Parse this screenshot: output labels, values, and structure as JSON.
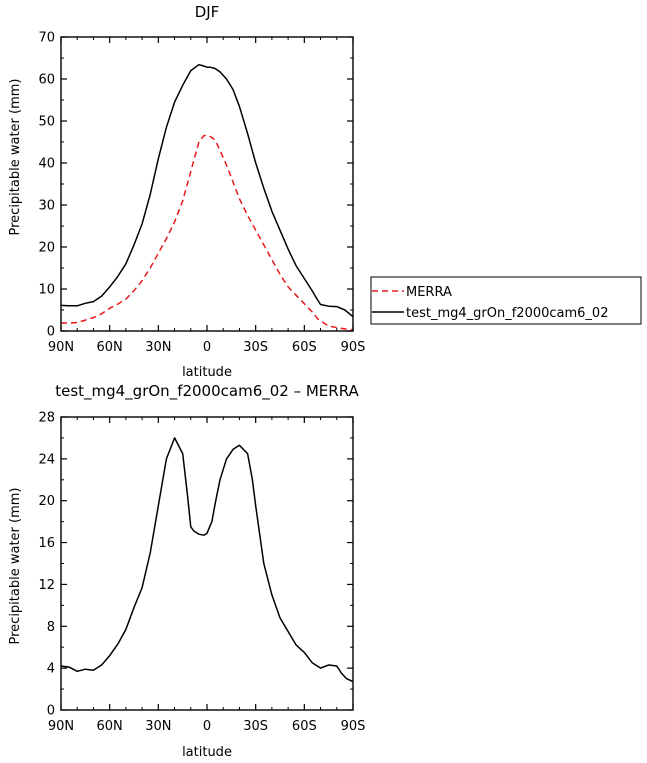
{
  "chart_data": [
    {
      "type": "line",
      "title": "DJF",
      "xlabel": "latitude",
      "ylabel": "Precipitable water (mm)",
      "xlim": [
        90,
        -90
      ],
      "ylim": [
        0,
        70
      ],
      "x_ticks": [
        90,
        60,
        30,
        0,
        -30,
        -60,
        -90
      ],
      "x_tick_labels": [
        "90N",
        "60N",
        "30N",
        "0",
        "30S",
        "60S",
        "90S"
      ],
      "y_ticks": [
        0,
        10,
        20,
        30,
        40,
        50,
        60,
        70
      ],
      "y_tick_labels": [
        "0",
        "10",
        "20",
        "30",
        "40",
        "50",
        "60",
        "70"
      ],
      "legend_position": "right",
      "series": [
        {
          "name": "MERRA",
          "color": "#e8191c",
          "dash": "dashed",
          "x": [
            90,
            85,
            80,
            75,
            70,
            65,
            60,
            55,
            50,
            45,
            40,
            35,
            30,
            25,
            20,
            15,
            10,
            5,
            2,
            0,
            -2,
            -5,
            -8,
            -12,
            -16,
            -20,
            -25,
            -30,
            -35,
            -40,
            -45,
            -50,
            -55,
            -60,
            -65,
            -68,
            -70,
            -75,
            -80,
            -85,
            -90
          ],
          "y": [
            1.9,
            1.9,
            2.0,
            2.6,
            3.2,
            4.1,
            5.4,
            6.4,
            7.6,
            9.6,
            12.0,
            15.0,
            18.5,
            22.0,
            26.0,
            31.0,
            38.0,
            45.0,
            46.5,
            46.6,
            46.3,
            45.5,
            43.0,
            39.5,
            35.5,
            31.5,
            27.5,
            24.0,
            20.5,
            17.0,
            13.5,
            10.5,
            8.5,
            6.5,
            4.5,
            3.0,
            2.4,
            1.2,
            0.8,
            0.5,
            0.3
          ]
        },
        {
          "name": "test_mg4_grOn_f2000cam6_02",
          "color": "#000000",
          "dash": "solid",
          "x": [
            90,
            85,
            80,
            75,
            70,
            65,
            60,
            55,
            50,
            45,
            40,
            35,
            30,
            25,
            20,
            15,
            10,
            5,
            2,
            0,
            -2,
            -5,
            -8,
            -12,
            -16,
            -20,
            -25,
            -30,
            -35,
            -40,
            -45,
            -50,
            -55,
            -60,
            -65,
            -68,
            -70,
            -75,
            -80,
            -85,
            -90
          ],
          "y": [
            6.1,
            6.0,
            6.0,
            6.6,
            7.0,
            8.3,
            10.5,
            13.0,
            16.0,
            20.5,
            25.5,
            32.5,
            41.0,
            48.5,
            54.5,
            58.5,
            62.0,
            63.4,
            63.1,
            62.8,
            62.8,
            62.5,
            61.7,
            60.0,
            57.5,
            53.5,
            47.0,
            40.0,
            34.0,
            28.5,
            24.0,
            19.5,
            15.5,
            12.5,
            9.5,
            7.5,
            6.3,
            5.9,
            5.8,
            5.0,
            3.4
          ]
        }
      ]
    },
    {
      "type": "line",
      "title": "test_mg4_grOn_f2000cam6_02 – MERRA",
      "xlabel": "latitude",
      "ylabel": "Precipitable water (mm)",
      "xlim": [
        90,
        -90
      ],
      "ylim": [
        0,
        28
      ],
      "x_ticks": [
        90,
        60,
        30,
        0,
        -30,
        -60,
        -90
      ],
      "x_tick_labels": [
        "90N",
        "60N",
        "30N",
        "0",
        "30S",
        "60S",
        "90S"
      ],
      "y_ticks": [
        0,
        4,
        8,
        12,
        16,
        20,
        24,
        28
      ],
      "y_tick_labels": [
        "0",
        "4",
        "8",
        "12",
        "16",
        "20",
        "24",
        "28"
      ],
      "series": [
        {
          "color": "#000000",
          "dash": "solid",
          "x": [
            90,
            85,
            80,
            75,
            70,
            65,
            60,
            55,
            50,
            45,
            40,
            35,
            30,
            25,
            20,
            15,
            12,
            10,
            8,
            5,
            2,
            0,
            -3,
            -5,
            -8,
            -12,
            -16,
            -20,
            -25,
            -28,
            -30,
            -35,
            -40,
            -45,
            -50,
            -55,
            -60,
            -65,
            -70,
            -75,
            -80,
            -83,
            -86,
            -90
          ],
          "y": [
            4.2,
            4.1,
            3.7,
            3.9,
            3.8,
            4.3,
            5.2,
            6.3,
            7.7,
            9.8,
            11.7,
            15.0,
            19.5,
            24.0,
            26.0,
            24.5,
            20.5,
            17.5,
            17.1,
            16.8,
            16.7,
            16.9,
            18.0,
            19.7,
            22.0,
            24.0,
            24.9,
            25.3,
            24.5,
            22.0,
            19.5,
            14.0,
            11.0,
            8.8,
            7.5,
            6.2,
            5.5,
            4.5,
            4.0,
            4.3,
            4.2,
            3.5,
            3.0,
            2.7
          ]
        }
      ]
    }
  ]
}
